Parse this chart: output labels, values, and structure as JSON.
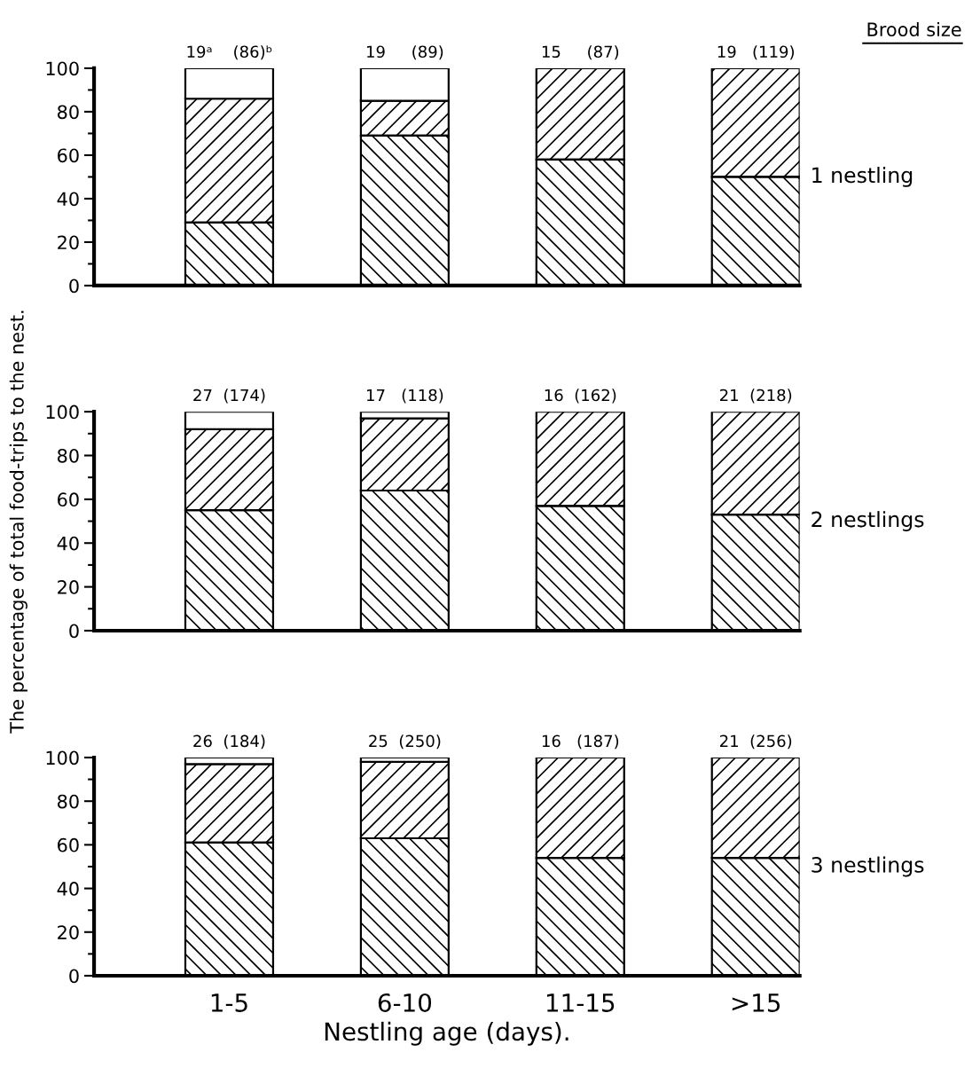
{
  "chart_data": [
    {
      "type": "bar",
      "stacked": true,
      "categories": [
        "1-5",
        "6-10",
        "11-15",
        ">15"
      ],
      "tick_labels": "y",
      "ylim": [
        0,
        100
      ],
      "yticks": [
        0,
        20,
        40,
        60,
        80,
        100
      ],
      "grid": false,
      "legend": false,
      "series": [
        {
          "color": "#000000",
          "values": [
            29,
            69,
            58,
            50
          ]
        },
        {
          "color": "#000000",
          "values": [
            57,
            16,
            42,
            50
          ]
        },
        {
          "color": "#ffffff",
          "values": [
            14,
            15,
            null,
            null
          ]
        }
      ],
      "annotations": [
        "Brood size",
        "1 nestling",
        {
          "text": "19ᵃ    (86)ᵇ",
          "x": "1-5",
          "y": 100
        },
        {
          "text": "19     (89)",
          "x": "6-10",
          "y": 100
        },
        {
          "text": "15     (87)",
          "x": "11-15",
          "y": 100
        },
        {
          "text": "19   (119)",
          "x": ">15",
          "y": 100
        }
      ]
    },
    {
      "type": "bar",
      "stacked": true,
      "categories": [
        "1-5",
        "6-10",
        "11-15",
        ">15"
      ],
      "tick_labels": "y",
      "ylim": [
        0,
        100
      ],
      "yticks": [
        0,
        20,
        40,
        60,
        80,
        100
      ],
      "grid": false,
      "legend": false,
      "ylabel": "The percentage of total food-trips to the nest.",
      "series": [
        {
          "color": "#000000",
          "values": [
            55,
            64,
            57,
            53
          ]
        },
        {
          "color": "#000000",
          "values": [
            37,
            33,
            43,
            47
          ]
        },
        {
          "color": "#ffffff",
          "values": [
            8,
            3,
            null,
            null
          ]
        }
      ],
      "annotations": [
        "2 nestlings",
        {
          "text": "27  (174)",
          "x": "1-5",
          "y": 100
        },
        {
          "text": "17   (118)",
          "x": "6-10",
          "y": 100
        },
        {
          "text": "16  (162)",
          "x": "11-15",
          "y": 100
        },
        {
          "text": "21  (218)",
          "x": ">15",
          "y": 100
        }
      ]
    },
    {
      "type": "bar",
      "stacked": true,
      "categories": [
        "1-5",
        "6-10",
        "11-15",
        ">15"
      ],
      "ylim": [
        0,
        100
      ],
      "yticks": [
        0,
        20,
        40,
        60,
        80,
        100
      ],
      "grid": false,
      "legend": false,
      "xlabel": "Nestling age (days).",
      "series": [
        {
          "color": "#000000",
          "values": [
            61,
            63,
            54,
            54
          ]
        },
        {
          "color": "#000000",
          "values": [
            36,
            35,
            46,
            46
          ]
        },
        {
          "color": "#ffffff",
          "values": [
            3,
            2,
            null,
            null
          ]
        }
      ],
      "annotations": [
        "3 nestlings",
        {
          "text": "26  (184)",
          "x": "1-5",
          "y": 100
        },
        {
          "text": "25  (250)",
          "x": "6-10",
          "y": 100
        },
        {
          "text": "16   (187)",
          "x": "11-15",
          "y": 100
        },
        {
          "text": "21  (256)",
          "x": ">15",
          "y": 100
        }
      ]
    }
  ]
}
